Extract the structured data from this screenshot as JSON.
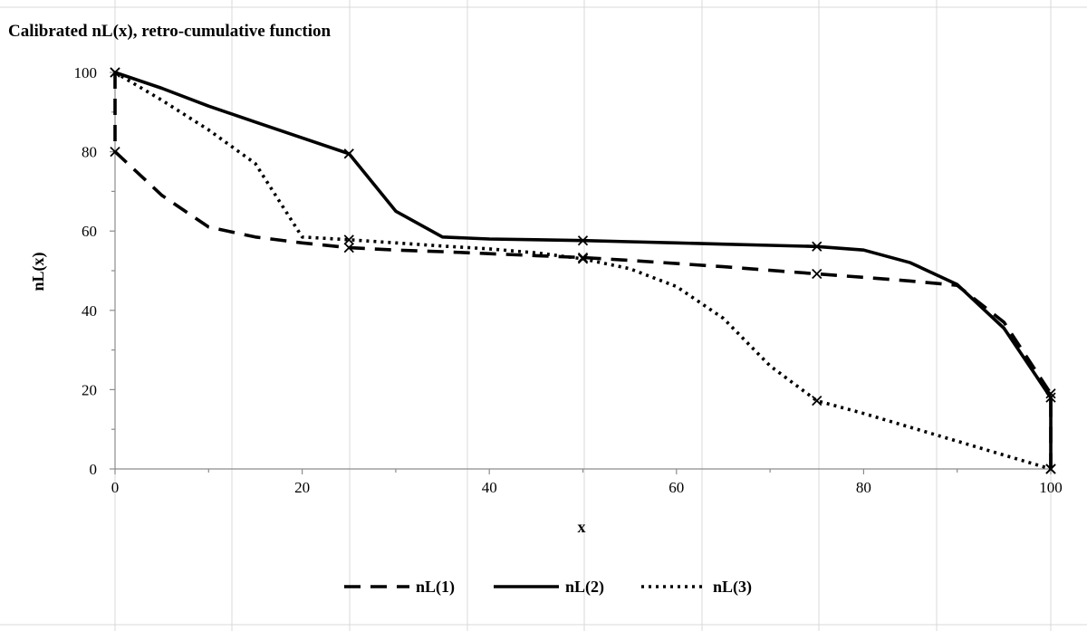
{
  "chart_data": {
    "type": "line",
    "title": "Calibrated nL(x), retro-cumulative function",
    "xlabel": "x",
    "ylabel": "nL(x)",
    "xlim": [
      0,
      100
    ],
    "ylim": [
      0,
      100
    ],
    "x_ticks": [
      0,
      20,
      40,
      60,
      80,
      100
    ],
    "y_ticks": [
      0,
      20,
      40,
      60,
      80,
      100
    ],
    "grid": "vertical gridlines only",
    "legend_position": "bottom",
    "series": [
      {
        "name": "nL(1)",
        "style": "dashed",
        "color": "#000000",
        "points": [
          [
            0,
            100
          ],
          [
            0,
            80
          ],
          [
            5,
            69
          ],
          [
            10,
            61
          ],
          [
            15,
            58.5
          ],
          [
            20,
            57
          ],
          [
            25,
            55.8
          ],
          [
            30,
            55.2
          ],
          [
            35,
            54.8
          ],
          [
            40,
            54.3
          ],
          [
            45,
            53.8
          ],
          [
            50,
            53.3
          ],
          [
            55,
            52.6
          ],
          [
            60,
            51.8
          ],
          [
            65,
            51
          ],
          [
            70,
            50.1
          ],
          [
            75,
            49.2
          ],
          [
            80,
            48.3
          ],
          [
            85,
            47.4
          ],
          [
            90,
            46.3
          ],
          [
            95,
            37
          ],
          [
            100,
            19
          ],
          [
            100,
            0
          ]
        ],
        "marked": [
          [
            0,
            80
          ],
          [
            25,
            55.8
          ],
          [
            50,
            53.3
          ],
          [
            75,
            49.2
          ],
          [
            100,
            19
          ],
          [
            100,
            0
          ]
        ]
      },
      {
        "name": "nL(2)",
        "style": "solid",
        "color": "#000000",
        "points": [
          [
            0,
            100
          ],
          [
            5,
            96
          ],
          [
            10,
            91.5
          ],
          [
            15,
            87.5
          ],
          [
            20,
            83.5
          ],
          [
            25,
            79.5
          ],
          [
            30,
            65
          ],
          [
            35,
            58.5
          ],
          [
            40,
            58
          ],
          [
            45,
            57.8
          ],
          [
            50,
            57.6
          ],
          [
            55,
            57.3
          ],
          [
            60,
            57
          ],
          [
            65,
            56.7
          ],
          [
            70,
            56.4
          ],
          [
            75,
            56.1
          ],
          [
            80,
            55.2
          ],
          [
            85,
            52
          ],
          [
            90,
            46.5
          ],
          [
            95,
            35.5
          ],
          [
            100,
            18
          ],
          [
            100,
            0
          ]
        ],
        "marked": [
          [
            0,
            100
          ],
          [
            25,
            79.5
          ],
          [
            50,
            57.6
          ],
          [
            75,
            56.1
          ],
          [
            100,
            18
          ],
          [
            100,
            0
          ]
        ]
      },
      {
        "name": "nL(3)",
        "style": "dotted",
        "color": "#000000",
        "points": [
          [
            0,
            100
          ],
          [
            5,
            93
          ],
          [
            10,
            85.5
          ],
          [
            15,
            77
          ],
          [
            20,
            58.5
          ],
          [
            25,
            57.8
          ],
          [
            30,
            57
          ],
          [
            35,
            56.2
          ],
          [
            40,
            55.5
          ],
          [
            45,
            54.5
          ],
          [
            50,
            53
          ],
          [
            55,
            50.5
          ],
          [
            60,
            46
          ],
          [
            65,
            38
          ],
          [
            70,
            26
          ],
          [
            75,
            17.2
          ],
          [
            80,
            14
          ],
          [
            85,
            10.5
          ],
          [
            90,
            7
          ],
          [
            95,
            3.5
          ],
          [
            100,
            0
          ]
        ],
        "marked": [
          [
            0,
            100
          ],
          [
            25,
            57.8
          ],
          [
            50,
            53
          ],
          [
            75,
            17.2
          ],
          [
            100,
            0
          ]
        ]
      }
    ]
  }
}
